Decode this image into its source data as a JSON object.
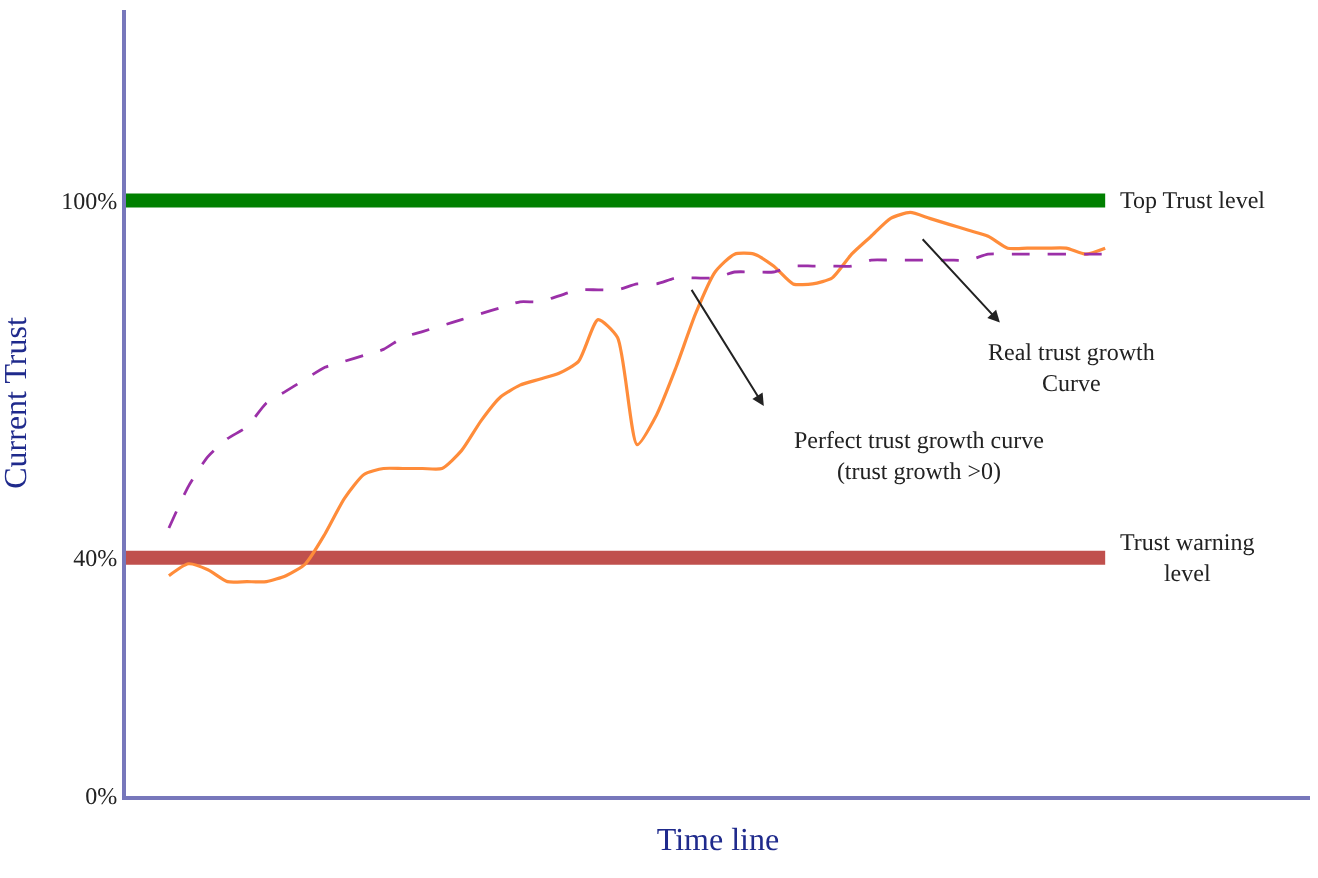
{
  "chart_data": {
    "type": "line",
    "xlabel": "Time line",
    "ylabel": "Current Trust",
    "categories": [
      null,
      null,
      null,
      null,
      null,
      null,
      null,
      null,
      null,
      null,
      null,
      null,
      null,
      null,
      null,
      null,
      null,
      null,
      null,
      null,
      null,
      null,
      null,
      null,
      null,
      null,
      null,
      null,
      null,
      null,
      null,
      null,
      null,
      null,
      null,
      null,
      null,
      null,
      null,
      null,
      null,
      null,
      null,
      null,
      null,
      null,
      null,
      null,
      null,
      null,
      null,
      null,
      null,
      null,
      null,
      null,
      null,
      null,
      null,
      null
    ],
    "series": [
      {
        "color": "#ff8c3a",
        "line_style": "solid",
        "values": [
          null,
          37,
          39,
          38,
          36,
          36,
          36,
          37,
          39,
          44,
          50,
          54,
          55,
          55,
          55,
          55,
          58,
          63,
          67,
          69,
          70,
          71,
          73,
          80,
          77,
          59,
          64,
          72,
          81,
          88,
          91,
          91,
          89,
          86,
          86,
          87,
          91,
          94,
          97,
          98,
          97,
          96,
          95,
          94,
          92,
          92,
          92,
          92,
          91,
          92,
          null,
          null,
          null,
          null,
          null,
          null,
          null,
          null,
          null,
          null
        ]
      },
      {
        "color": "#9b30a8",
        "line_style": "dashed",
        "values": [
          null,
          45,
          52,
          57,
          60,
          62,
          66,
          68,
          70,
          72,
          73,
          74,
          75,
          77,
          78,
          79,
          80,
          81,
          82,
          83,
          83,
          84,
          85,
          85,
          85,
          86,
          86,
          87,
          87,
          87,
          88,
          88,
          88,
          89,
          89,
          89,
          89,
          90,
          90,
          90,
          90,
          90,
          90,
          91,
          91,
          91,
          91,
          91,
          91,
          91,
          null,
          null,
          null,
          null,
          null,
          null,
          null,
          null,
          null,
          null
        ]
      }
    ],
    "ylim": [
      0,
      132
    ],
    "yticks": [
      {
        "value": 0,
        "label": "0%"
      },
      {
        "value": 40,
        "label": "40%"
      },
      {
        "value": 100,
        "label": "100%"
      }
    ],
    "tick_labels": "y",
    "grid": false,
    "marker": "none",
    "ref_lines": [
      {
        "axis": "y",
        "value": 100,
        "label": "Top Trust level",
        "color": "#008000"
      },
      {
        "axis": "y",
        "value": 40,
        "label": "Trust warning\nlevel",
        "color": "#c0504d"
      }
    ],
    "annotations": [
      "Real trust growth\nCurve",
      "Perfect trust growth curve\n(trust growth >0)"
    ]
  }
}
